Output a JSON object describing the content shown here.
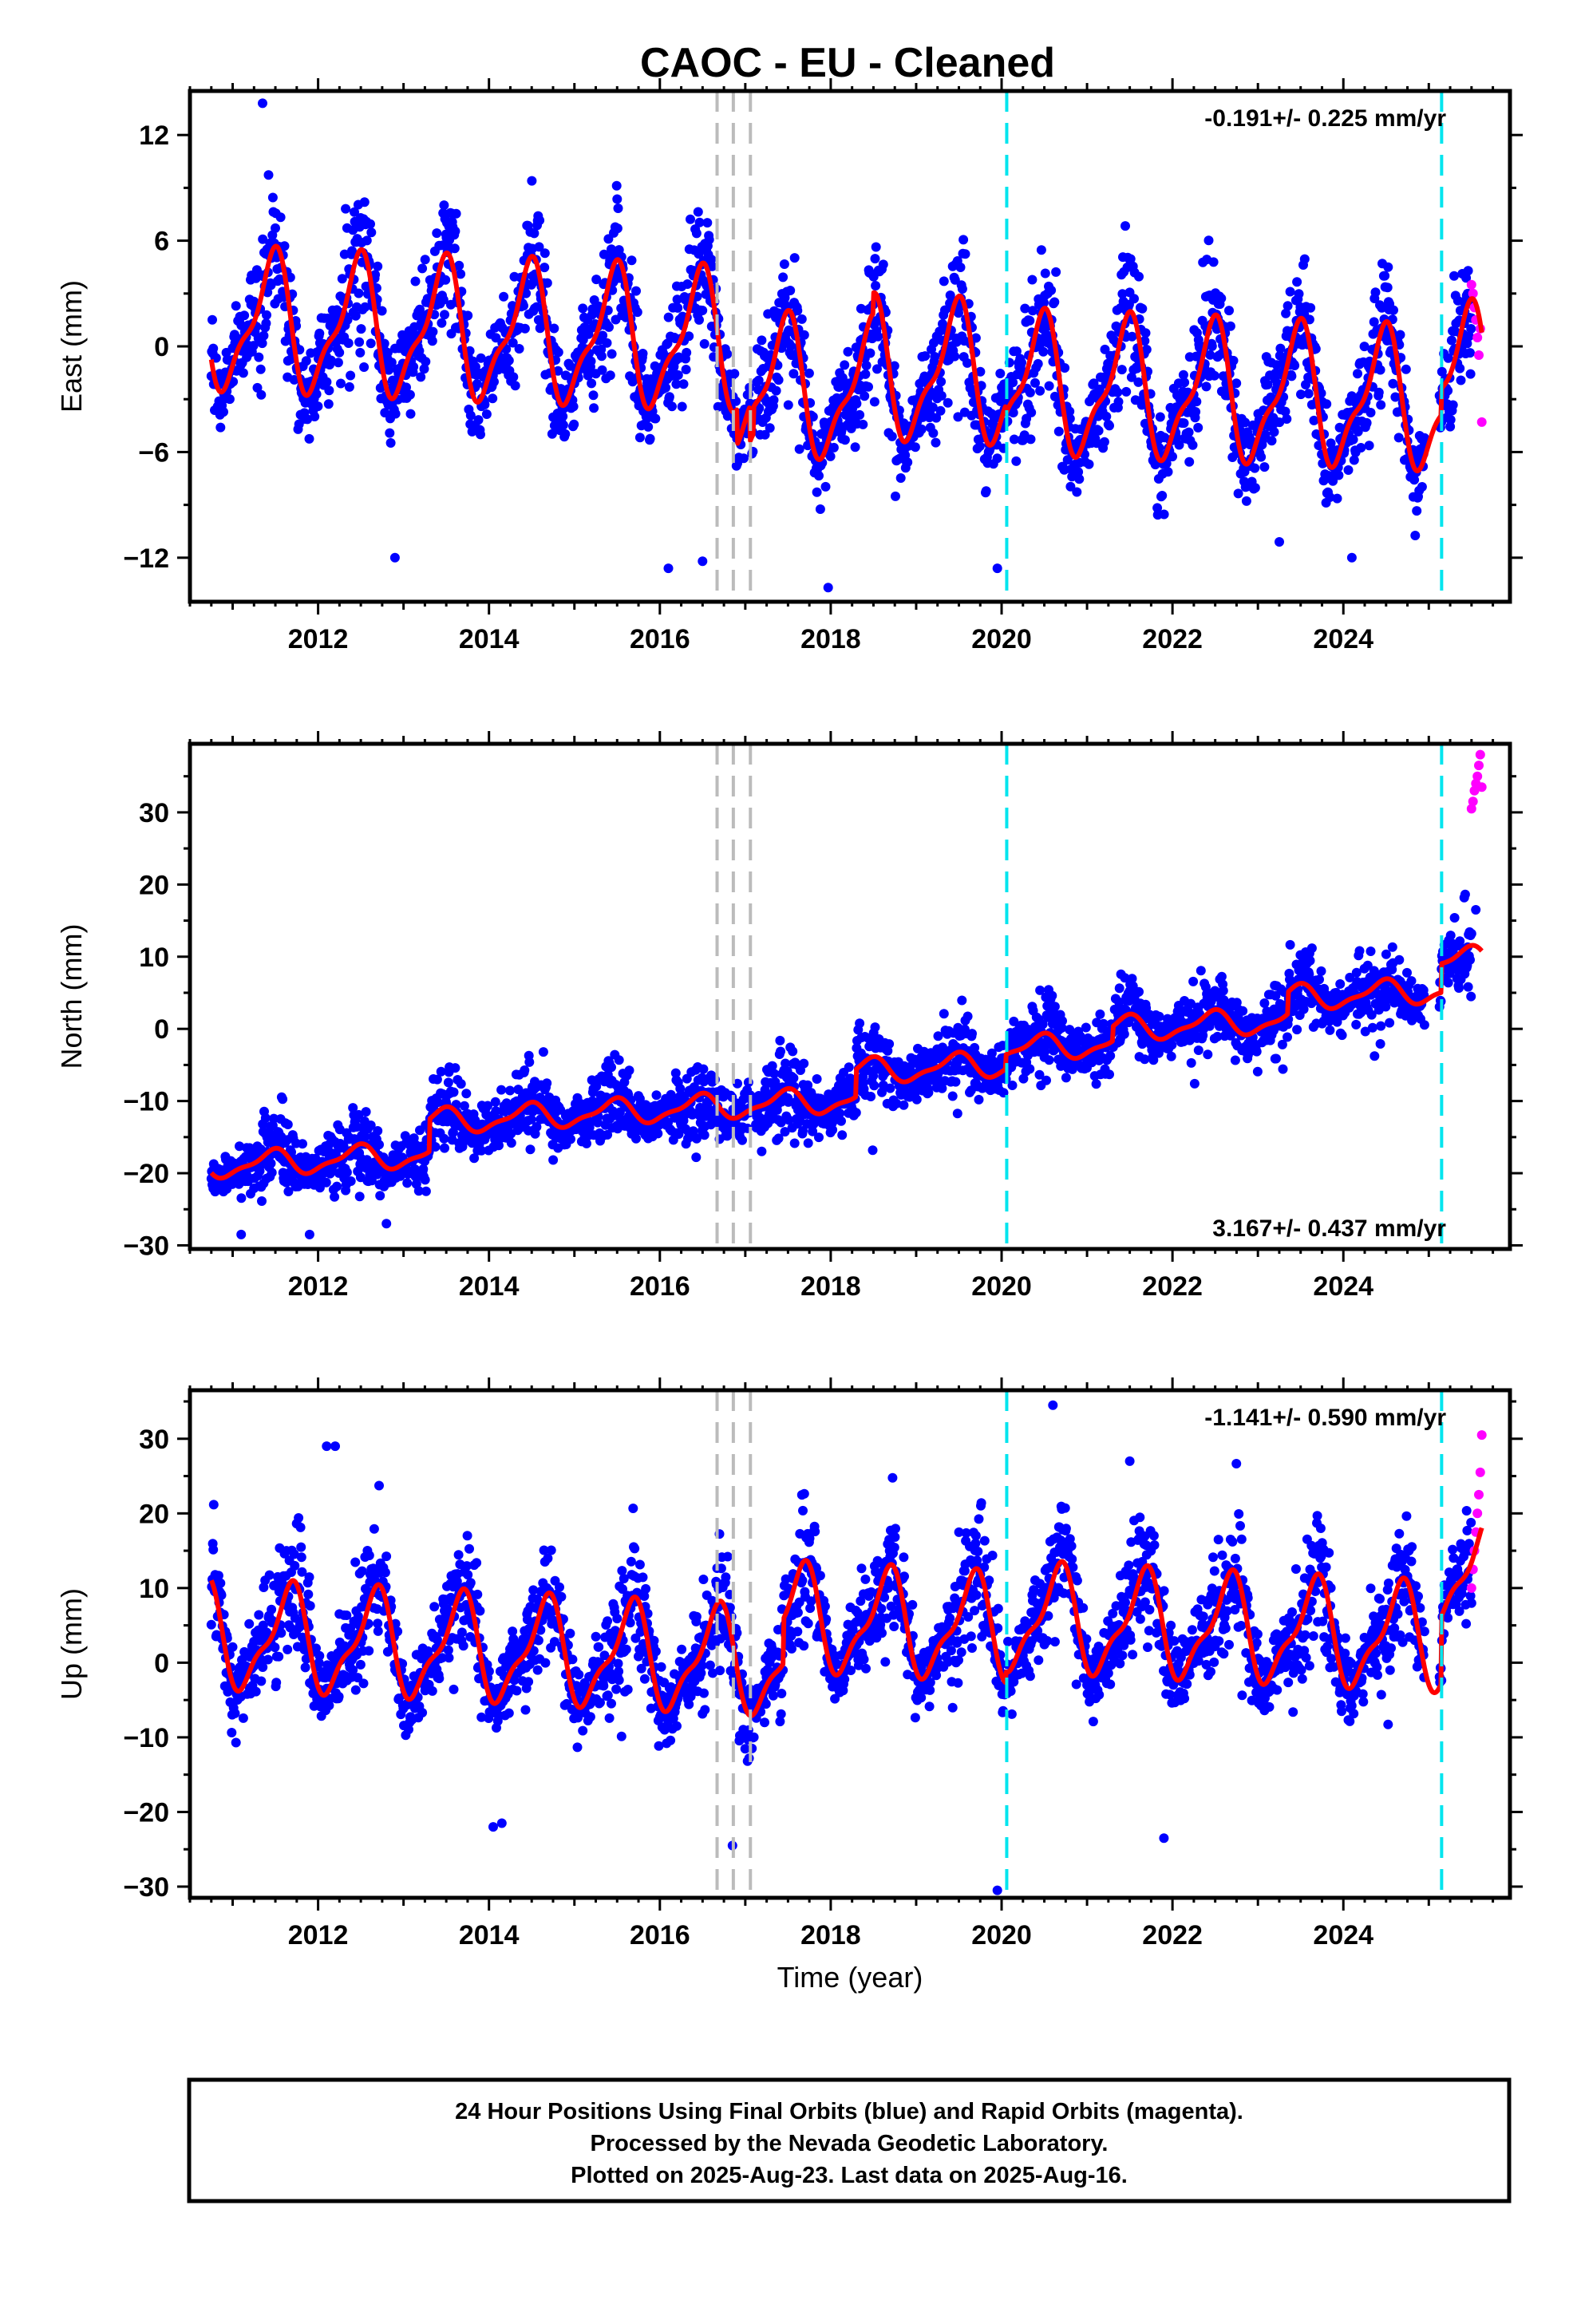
{
  "title": "CAOC  - EU - Cleaned",
  "xlabel": "Time (year)",
  "footer": [
    "24 Hour Positions Using Final Orbits (blue) and Rapid Orbits (magenta).",
    "Processed by the Nevada Geodetic Laboratory.",
    "Plotted on 2025-Aug-23. Last data on 2025-Aug-16."
  ],
  "colors": {
    "final_points": "#0000ff",
    "rapid_points": "#ff00ff",
    "model": "#ff0000",
    "equipment_change": "#bbbbbb",
    "earthquake": "#00e5ee"
  },
  "chart_data": [
    {
      "type": "scatter",
      "ylabel": "East (mm)",
      "rate": "-0.191+/- 0.225 mm/yr",
      "rate_position": "top-right",
      "xlim": [
        2010.5,
        2025.95
      ],
      "ylim": [
        -14.5,
        14.5
      ],
      "xticks": [
        2012,
        2014,
        2016,
        2018,
        2020,
        2022,
        2024
      ],
      "yticks": [
        -12,
        -6,
        0,
        6,
        12
      ],
      "data_start": 2010.75,
      "final_end": 2025.5,
      "data_end": 2025.62,
      "trend": {
        "ref_year": 2018.0,
        "value_at_ref": 0.0,
        "rate_per_year": -0.191
      },
      "offsets": [
        {
          "year": 2016.9,
          "value": -2.0
        },
        {
          "year": 2017.05,
          "value": -2.0
        },
        {
          "year": 2017.1,
          "value": 1.5
        },
        {
          "year": 2018.5,
          "value": 1.2
        },
        {
          "year": 2020.05,
          "value": -0.5
        },
        {
          "year": 2025.15,
          "value": 1.5
        }
      ],
      "annual_amplitude": 3.6,
      "annual_peak": 0.45,
      "scatter_sd": 1.6,
      "rapid_values": [
        3.5,
        3.0,
        2.2,
        1.5,
        0.5,
        -0.5,
        1.0,
        -4.3
      ],
      "outliers": [
        [
          2011.35,
          13.8
        ],
        [
          2016.1,
          -12.6
        ],
        [
          2017.97,
          -13.7
        ],
        [
          2019.95,
          -12.6
        ],
        [
          2016.5,
          -12.2
        ],
        [
          2012.9,
          -12.0
        ],
        [
          2023.25,
          -11.1
        ],
        [
          2024.1,
          -12.0
        ]
      ],
      "equipment_changes": [
        2016.67,
        2016.86,
        2017.06
      ],
      "earthquakes": [
        2020.06,
        2025.15
      ]
    },
    {
      "type": "scatter",
      "ylabel": "North (mm)",
      "rate": "3.167+/- 0.437 mm/yr",
      "rate_position": "bottom-right",
      "xlim": [
        2010.5,
        2025.95
      ],
      "ylim": [
        -30.5,
        39.5
      ],
      "xticks": [
        2012,
        2014,
        2016,
        2018,
        2020,
        2022,
        2024
      ],
      "yticks": [
        -30,
        -20,
        -10,
        0,
        10,
        20,
        30
      ],
      "data_start": 2010.75,
      "final_end": 2025.5,
      "data_end": 2025.62,
      "trend": {
        "ref_year": 2010.75,
        "value_at_ref": -19.0,
        "rate_per_year": 0.63
      },
      "offsets": [
        {
          "year": 2013.3,
          "value": 4.5
        },
        {
          "year": 2018.3,
          "value": 3.8
        },
        {
          "year": 2020.05,
          "value": 2.0
        },
        {
          "year": 2021.3,
          "value": 2.0
        },
        {
          "year": 2023.35,
          "value": 3.0
        },
        {
          "year": 2025.15,
          "value": 4.0
        }
      ],
      "annual_amplitude": 1.6,
      "annual_peak": 0.45,
      "scatter_sd": 2.2,
      "rapid_values": [
        30.5,
        31.5,
        33.0,
        34.0,
        35.0,
        36.5,
        38.0,
        33.5
      ],
      "outliers": [
        [
          2011.1,
          -28.5
        ],
        [
          2011.9,
          -28.5
        ],
        [
          2012.8,
          -27.0
        ],
        [
          2016.5,
          -14.0
        ],
        [
          2024.15,
          4.5
        ],
        [
          2025.55,
          16.5
        ],
        [
          2022.6,
          4.0
        ]
      ],
      "equipment_changes": [
        2016.67,
        2016.86,
        2017.06
      ],
      "earthquakes": [
        2020.06,
        2025.15
      ]
    },
    {
      "type": "scatter",
      "ylabel": "Up (mm)",
      "rate": "-1.141+/- 0.590 mm/yr",
      "rate_position": "top-right",
      "xlim": [
        2010.5,
        2025.95
      ],
      "ylim": [
        -31.5,
        36.5
      ],
      "xticks": [
        2012,
        2014,
        2016,
        2018,
        2020,
        2022,
        2024
      ],
      "yticks": [
        -30,
        -20,
        -10,
        0,
        10,
        20,
        30
      ],
      "data_start": 2010.75,
      "final_end": 2025.5,
      "data_end": 2025.62,
      "trend": {
        "ref_year": 2010.75,
        "value_at_ref": 3.5,
        "rate_per_year": -0.55
      },
      "offsets": [
        {
          "year": 2017.45,
          "value": 6.0
        },
        {
          "year": 2020.05,
          "value": 1.5
        },
        {
          "year": 2025.15,
          "value": 9.0
        }
      ],
      "annual_amplitude": 6.5,
      "annual_peak": 0.65,
      "scatter_sd": 3.4,
      "rapid_values": [
        10.0,
        12.5,
        15.0,
        17.5,
        20.0,
        22.5,
        25.5,
        30.5
      ],
      "outliers": [
        [
          2012.1,
          29.0
        ],
        [
          2012.2,
          29.0
        ],
        [
          2020.6,
          34.5
        ],
        [
          2016.85,
          -24.5
        ],
        [
          2019.95,
          -30.5
        ],
        [
          2021.9,
          -23.5
        ],
        [
          2014.05,
          -22.0
        ],
        [
          2014.15,
          -21.5
        ],
        [
          2021.5,
          27.0
        ]
      ],
      "equipment_changes": [
        2016.67,
        2016.86,
        2017.06
      ],
      "earthquakes": [
        2020.06,
        2025.15
      ]
    }
  ]
}
